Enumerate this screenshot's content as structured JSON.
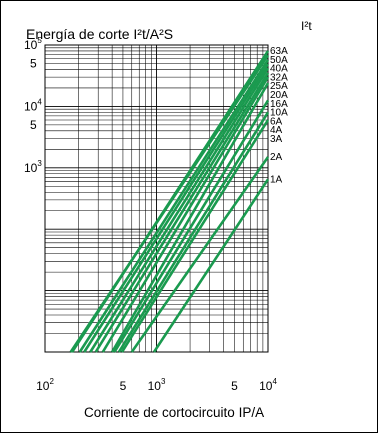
{
  "chart_data": {
    "type": "line",
    "scale": "log-log",
    "title": "Energía de corte I²t/A²S",
    "corner_label": "I²t",
    "xlabel": "Corriente de cortocircuito IP/A",
    "xlim": [
      100,
      10000
    ],
    "ylim": [
      1,
      100000
    ],
    "x_tick_labels": [
      {
        "value": 100,
        "base": "10",
        "exp": "2"
      },
      {
        "value": 500,
        "base": "5",
        "exp": ""
      },
      {
        "value": 1000,
        "base": "10",
        "exp": "3"
      },
      {
        "value": 5000,
        "base": "5",
        "exp": ""
      },
      {
        "value": 10000,
        "base": "10",
        "exp": "4"
      }
    ],
    "y_tick_labels": [
      {
        "value": 1000,
        "base": "10",
        "exp": "3"
      },
      {
        "value": 5000,
        "base": "5",
        "exp": ""
      },
      {
        "value": 10000,
        "base": "10",
        "exp": "4"
      },
      {
        "value": 50000,
        "base": "5",
        "exp": ""
      },
      {
        "value": 100000,
        "base": "10",
        "exp": "5"
      }
    ],
    "line_color": "#1a9a4f",
    "series": [
      {
        "name": "63A",
        "points": [
          [
            175,
            1
          ],
          [
            10000,
            80000
          ]
        ]
      },
      {
        "name": "50A",
        "points": [
          [
            170,
            1
          ],
          [
            10000,
            68000
          ]
        ]
      },
      {
        "name": "40A",
        "points": [
          [
            205,
            1
          ],
          [
            10000,
            57000
          ]
        ]
      },
      {
        "name": "32A",
        "points": [
          [
            225,
            1
          ],
          [
            10000,
            49000
          ]
        ]
      },
      {
        "name": "25A",
        "points": [
          [
            255,
            1
          ],
          [
            10000,
            42000
          ]
        ]
      },
      {
        "name": "20A",
        "points": [
          [
            285,
            1
          ],
          [
            10000,
            35000
          ]
        ]
      },
      {
        "name": "16A",
        "points": [
          [
            330,
            1
          ],
          [
            10000,
            30000
          ]
        ]
      },
      {
        "name": "10A",
        "points": [
          [
            400,
            1
          ],
          [
            10000,
            24000
          ]
        ]
      },
      {
        "name": "6A",
        "points": [
          [
            420,
            1
          ],
          [
            10000,
            12500
          ]
        ]
      },
      {
        "name": "4A",
        "points": [
          [
            460,
            1
          ],
          [
            10000,
            8000
          ]
        ]
      },
      {
        "name": "3A",
        "points": [
          [
            490,
            1
          ],
          [
            10000,
            6000
          ]
        ]
      },
      {
        "name": "2A",
        "points": [
          [
            600,
            1
          ],
          [
            10000,
            1500
          ]
        ]
      },
      {
        "name": "1A",
        "points": [
          [
            950,
            1
          ],
          [
            10000,
            650
          ]
        ]
      }
    ]
  }
}
